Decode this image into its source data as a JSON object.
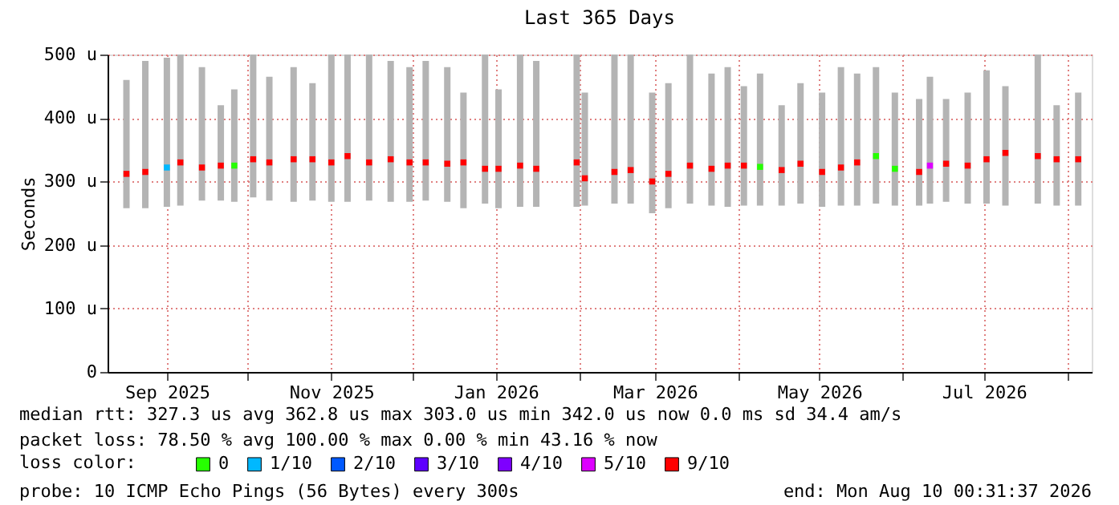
{
  "chart_data": {
    "type": "bar",
    "title": "Last 365 Days",
    "ylabel": "Seconds",
    "xlim": [
      "2025-08-10",
      "2026-08-10"
    ],
    "ylim": [
      0,
      500
    ],
    "yticks": [
      0,
      {
        "value": 100,
        "label": "100 u"
      },
      {
        "value": 200,
        "label": "200 u"
      },
      {
        "value": 300,
        "label": "300 u"
      },
      {
        "value": 400,
        "label": "400 u"
      },
      {
        "value": 500,
        "label": "500 u"
      }
    ],
    "xticks": [
      {
        "value": "2025-09-01",
        "label": "Sep 2025"
      },
      {
        "value": "2025-10-01",
        "label": null
      },
      {
        "value": "2025-11-01",
        "label": "Nov 2025"
      },
      {
        "value": "2025-12-01",
        "label": null
      },
      {
        "value": "2026-01-01",
        "label": "Jan 2026"
      },
      {
        "value": "2026-02-01",
        "label": null
      },
      {
        "value": "2026-03-01",
        "label": "Mar 2026"
      },
      {
        "value": "2026-04-01",
        "label": null
      },
      {
        "value": "2026-05-01",
        "label": "May 2026"
      },
      {
        "value": "2026-06-01",
        "label": null
      },
      {
        "value": "2026-07-01",
        "label": "Jul 2026"
      },
      {
        "value": "2026-08-01",
        "label": null
      }
    ],
    "grid": true,
    "legend": "bottom",
    "legend_title": "loss color:",
    "marker": "square",
    "series": [
      {
        "color": "#b4b4b4",
        "x": [
          "2025-08-17",
          "2025-08-24",
          "2025-09-01",
          "2025-09-06",
          "2025-09-14",
          "2025-09-21",
          "2025-09-26",
          "2025-10-03",
          "2025-10-09",
          "2025-10-18",
          "2025-10-25",
          "2025-11-01",
          "2025-11-07",
          "2025-11-15",
          "2025-11-23",
          "2025-11-30",
          "2025-12-06",
          "2025-12-14",
          "2025-12-20",
          "2025-12-28",
          "2026-01-02",
          "2026-01-10",
          "2026-01-16",
          "2026-01-31",
          "2026-02-03",
          "2026-02-14",
          "2026-02-20",
          "2026-02-28",
          "2026-03-06",
          "2026-03-14",
          "2026-03-22",
          "2026-03-28",
          "2026-04-03",
          "2026-04-09",
          "2026-04-17",
          "2026-04-24",
          "2026-05-02",
          "2026-05-09",
          "2026-05-15",
          "2026-05-22",
          "2026-05-29",
          "2026-06-07",
          "2026-06-11",
          "2026-06-17",
          "2026-06-25",
          "2026-07-02",
          "2026-07-09",
          "2026-07-21",
          "2026-07-28",
          "2026-08-05"
        ],
        "base": [
          258,
          258,
          260,
          262,
          270,
          270,
          268,
          275,
          270,
          268,
          270,
          268,
          268,
          270,
          268,
          268,
          270,
          268,
          258,
          265,
          258,
          260,
          260,
          260,
          262,
          265,
          265,
          250,
          258,
          265,
          262,
          260,
          262,
          262,
          262,
          265,
          260,
          262,
          262,
          265,
          262,
          262,
          265,
          268,
          265,
          265,
          262,
          265,
          262,
          262
        ],
        "values": [
          202,
          232,
          235,
          238,
          210,
          150,
          177,
          225,
          195,
          212,
          185,
          232,
          232,
          230,
          222,
          212,
          220,
          212,
          182,
          235,
          187,
          240,
          230,
          240,
          178,
          235,
          235,
          190,
          197,
          235,
          208,
          220,
          188,
          208,
          158,
          190,
          180,
          218,
          208,
          215,
          178,
          168,
          200,
          162,
          175,
          210,
          188,
          235,
          158,
          178
        ]
      },
      {
        "type": "scatter",
        "name": "0",
        "color": "#26ff00",
        "x": [
          "2025-09-26",
          "2026-04-09",
          "2026-05-22",
          "2026-05-29"
        ],
        "values": [
          325,
          323,
          340,
          320
        ]
      },
      {
        "type": "scatter",
        "name": "1/10",
        "color": "#00b8ff",
        "x": [
          "2025-09-01"
        ],
        "values": [
          322
        ]
      },
      {
        "type": "scatter",
        "name": "2/10",
        "color": "#0059ff"
      },
      {
        "type": "scatter",
        "name": "3/10",
        "color": "#5e00ff"
      },
      {
        "type": "scatter",
        "name": "4/10",
        "color": "#7e00ff"
      },
      {
        "type": "scatter",
        "name": "5/10",
        "color": "#dd00ff",
        "x": [
          "2026-06-11"
        ],
        "values": [
          325
        ]
      },
      {
        "type": "scatter",
        "name": "9/10",
        "color": "#ff0000",
        "x": [
          "2025-08-17",
          "2025-08-24",
          "2025-09-06",
          "2025-09-14",
          "2025-09-21",
          "2025-10-03",
          "2025-10-09",
          "2025-10-18",
          "2025-10-25",
          "2025-11-01",
          "2025-11-07",
          "2025-11-15",
          "2025-11-23",
          "2025-11-30",
          "2025-12-06",
          "2025-12-14",
          "2025-12-20",
          "2025-12-28",
          "2026-01-02",
          "2026-01-10",
          "2026-01-16",
          "2026-01-31",
          "2026-02-03",
          "2026-02-14",
          "2026-02-20",
          "2026-02-28",
          "2026-03-06",
          "2026-03-14",
          "2026-03-22",
          "2026-03-28",
          "2026-04-03",
          "2026-04-17",
          "2026-04-24",
          "2026-05-02",
          "2026-05-09",
          "2026-05-15",
          "2026-06-07",
          "2026-06-17",
          "2026-06-25",
          "2026-07-02",
          "2026-07-09",
          "2026-07-21",
          "2026-07-28",
          "2026-08-05"
        ],
        "values": [
          312,
          315,
          330,
          322,
          325,
          335,
          330,
          335,
          335,
          330,
          340,
          330,
          335,
          330,
          330,
          328,
          330,
          320,
          320,
          325,
          320,
          330,
          305,
          315,
          318,
          300,
          312,
          325,
          320,
          325,
          325,
          318,
          328,
          315,
          322,
          330,
          315,
          328,
          325,
          335,
          345,
          340,
          335,
          335
        ]
      }
    ],
    "annotations": [
      "median rtt: 327.3 us avg 362.8 us max 303.0 us min 342.0 us now 0.0 ms sd 34.4 am/s",
      "packet loss: 78.50 % avg 100.00 % max 0.00 % min 43.16 % now",
      "probe: 10 ICMP Echo Pings (56 Bytes) every 300s",
      "end: Mon Aug 10 00:31:37 2026"
    ]
  }
}
